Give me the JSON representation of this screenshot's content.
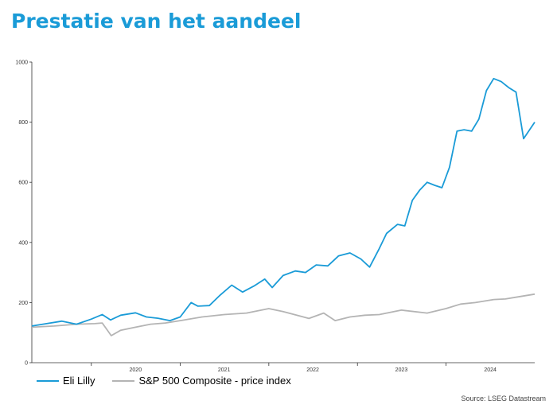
{
  "title": "Prestatie van het aandeel",
  "source": "Source: LSEG Datastream",
  "chart_data": {
    "type": "line",
    "ylim": [
      0,
      1000
    ],
    "yticks": [
      0,
      200,
      400,
      600,
      800,
      1000
    ],
    "xlim": [
      "2019-05-01",
      "2024-12-31"
    ],
    "xticks": [
      {
        "label": "2020",
        "date": "2020-07-01"
      },
      {
        "label": "2021",
        "date": "2021-07-01"
      },
      {
        "label": "2022",
        "date": "2022-07-01"
      },
      {
        "label": "2023",
        "date": "2023-07-01"
      },
      {
        "label": "2024",
        "date": "2024-07-01"
      }
    ],
    "legend_position": "bottom",
    "grid": false,
    "series": [
      {
        "name": "Eli Lilly",
        "color": "#1a9bd7",
        "points": [
          [
            "2019-05-01",
            122
          ],
          [
            "2019-07-01",
            130
          ],
          [
            "2019-09-01",
            138
          ],
          [
            "2019-11-01",
            128
          ],
          [
            "2020-01-01",
            145
          ],
          [
            "2020-02-15",
            160
          ],
          [
            "2020-03-20",
            142
          ],
          [
            "2020-05-01",
            158
          ],
          [
            "2020-07-01",
            166
          ],
          [
            "2020-08-15",
            152
          ],
          [
            "2020-10-01",
            148
          ],
          [
            "2020-11-20",
            140
          ],
          [
            "2021-01-01",
            152
          ],
          [
            "2021-02-15",
            200
          ],
          [
            "2021-03-15",
            188
          ],
          [
            "2021-05-01",
            190
          ],
          [
            "2021-06-15",
            225
          ],
          [
            "2021-08-01",
            258
          ],
          [
            "2021-09-15",
            235
          ],
          [
            "2021-11-01",
            255
          ],
          [
            "2021-12-15",
            278
          ],
          [
            "2022-01-15",
            250
          ],
          [
            "2022-03-01",
            290
          ],
          [
            "2022-04-20",
            305
          ],
          [
            "2022-06-01",
            300
          ],
          [
            "2022-07-15",
            325
          ],
          [
            "2022-09-01",
            322
          ],
          [
            "2022-10-15",
            355
          ],
          [
            "2022-12-01",
            365
          ],
          [
            "2023-01-15",
            345
          ],
          [
            "2023-02-20",
            318
          ],
          [
            "2023-04-01",
            380
          ],
          [
            "2023-05-01",
            430
          ],
          [
            "2023-06-15",
            460
          ],
          [
            "2023-07-15",
            455
          ],
          [
            "2023-08-15",
            540
          ],
          [
            "2023-09-15",
            575
          ],
          [
            "2023-10-15",
            600
          ],
          [
            "2023-11-15",
            590
          ],
          [
            "2023-12-15",
            582
          ],
          [
            "2024-01-15",
            650
          ],
          [
            "2024-02-15",
            770
          ],
          [
            "2024-03-15",
            775
          ],
          [
            "2024-04-15",
            770
          ],
          [
            "2024-05-15",
            810
          ],
          [
            "2024-06-15",
            905
          ],
          [
            "2024-07-15",
            945
          ],
          [
            "2024-08-15",
            935
          ],
          [
            "2024-09-15",
            915
          ],
          [
            "2024-10-15",
            900
          ],
          [
            "2024-11-15",
            745
          ],
          [
            "2024-12-31",
            800
          ]
        ]
      },
      {
        "name": "S&P 500 Composite - price index",
        "color": "#b4b4b4",
        "points": [
          [
            "2019-05-01",
            118
          ],
          [
            "2019-08-01",
            122
          ],
          [
            "2019-11-01",
            128
          ],
          [
            "2020-01-15",
            130
          ],
          [
            "2020-02-15",
            132
          ],
          [
            "2020-03-23",
            90
          ],
          [
            "2020-05-01",
            108
          ],
          [
            "2020-07-01",
            118
          ],
          [
            "2020-09-01",
            128
          ],
          [
            "2020-11-01",
            132
          ],
          [
            "2021-01-01",
            140
          ],
          [
            "2021-04-01",
            152
          ],
          [
            "2021-07-01",
            160
          ],
          [
            "2021-10-01",
            165
          ],
          [
            "2022-01-01",
            180
          ],
          [
            "2022-03-01",
            170
          ],
          [
            "2022-06-15",
            147
          ],
          [
            "2022-08-15",
            165
          ],
          [
            "2022-10-01",
            140
          ],
          [
            "2022-12-01",
            152
          ],
          [
            "2023-02-01",
            158
          ],
          [
            "2023-04-01",
            160
          ],
          [
            "2023-07-01",
            175
          ],
          [
            "2023-10-15",
            165
          ],
          [
            "2023-12-31",
            180
          ],
          [
            "2024-03-01",
            195
          ],
          [
            "2024-05-01",
            200
          ],
          [
            "2024-07-15",
            210
          ],
          [
            "2024-09-01",
            212
          ],
          [
            "2024-11-01",
            220
          ],
          [
            "2024-12-31",
            228
          ]
        ]
      }
    ]
  }
}
